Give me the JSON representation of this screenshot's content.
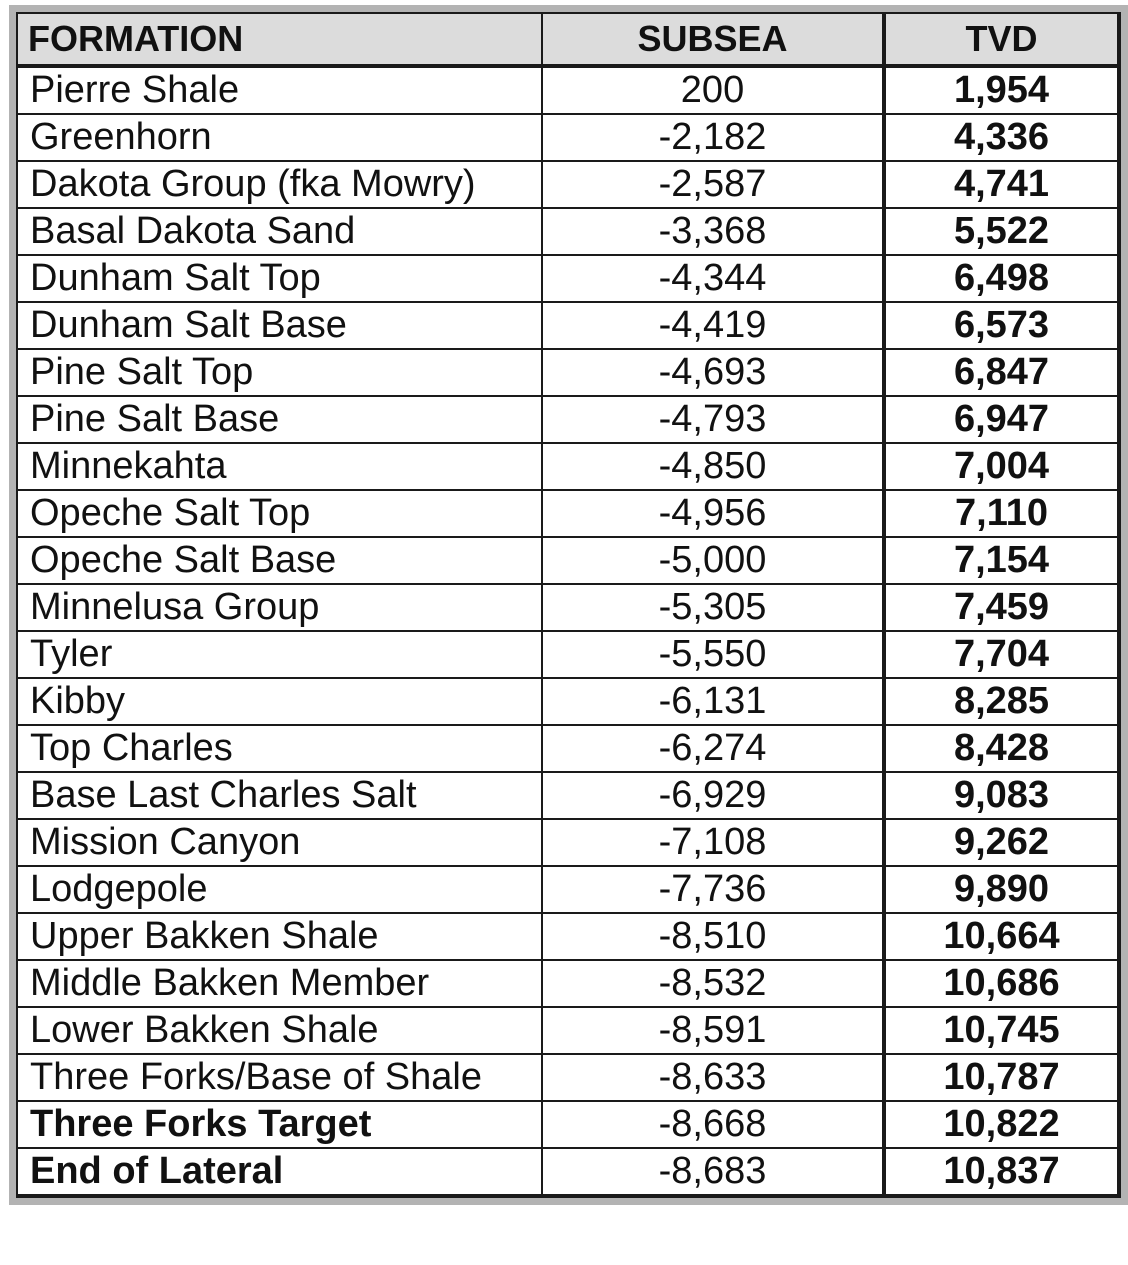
{
  "table": {
    "headers": [
      "FORMATION",
      "SUBSEA",
      "TVD"
    ],
    "rows": [
      {
        "formation": "Pierre Shale",
        "subsea": "200",
        "tvd": "1,954",
        "bold": false
      },
      {
        "formation": "Greenhorn",
        "subsea": "-2,182",
        "tvd": "4,336",
        "bold": false
      },
      {
        "formation": "Dakota Group (fka Mowry)",
        "subsea": "-2,587",
        "tvd": "4,741",
        "bold": false
      },
      {
        "formation": "Basal Dakota Sand",
        "subsea": "-3,368",
        "tvd": "5,522",
        "bold": false
      },
      {
        "formation": "Dunham Salt Top",
        "subsea": "-4,344",
        "tvd": "6,498",
        "bold": false
      },
      {
        "formation": "Dunham Salt Base",
        "subsea": "-4,419",
        "tvd": "6,573",
        "bold": false
      },
      {
        "formation": "Pine Salt Top",
        "subsea": "-4,693",
        "tvd": "6,847",
        "bold": false
      },
      {
        "formation": "Pine Salt Base",
        "subsea": "-4,793",
        "tvd": "6,947",
        "bold": false
      },
      {
        "formation": "Minnekahta",
        "subsea": "-4,850",
        "tvd": "7,004",
        "bold": false
      },
      {
        "formation": "Opeche Salt Top",
        "subsea": "-4,956",
        "tvd": "7,110",
        "bold": false
      },
      {
        "formation": "Opeche Salt Base",
        "subsea": "-5,000",
        "tvd": "7,154",
        "bold": false
      },
      {
        "formation": "Minnelusa Group",
        "subsea": "-5,305",
        "tvd": "7,459",
        "bold": false
      },
      {
        "formation": "Tyler",
        "subsea": "-5,550",
        "tvd": "7,704",
        "bold": false
      },
      {
        "formation": "Kibby",
        "subsea": "-6,131",
        "tvd": "8,285",
        "bold": false
      },
      {
        "formation": "Top Charles",
        "subsea": "-6,274",
        "tvd": "8,428",
        "bold": false
      },
      {
        "formation": "Base Last Charles Salt",
        "subsea": "-6,929",
        "tvd": "9,083",
        "bold": false
      },
      {
        "formation": "Mission Canyon",
        "subsea": "-7,108",
        "tvd": "9,262",
        "bold": false
      },
      {
        "formation": "Lodgepole",
        "subsea": "-7,736",
        "tvd": "9,890",
        "bold": false
      },
      {
        "formation": "Upper Bakken Shale",
        "subsea": "-8,510",
        "tvd": "10,664",
        "bold": false
      },
      {
        "formation": "Middle Bakken Member",
        "subsea": "-8,532",
        "tvd": "10,686",
        "bold": false
      },
      {
        "formation": "Lower Bakken Shale",
        "subsea": "-8,591",
        "tvd": "10,745",
        "bold": false
      },
      {
        "formation": "Three Forks/Base of Shale",
        "subsea": "-8,633",
        "tvd": "10,787",
        "bold": false
      },
      {
        "formation": "Three Forks Target",
        "subsea": "-8,668",
        "tvd": "10,822",
        "bold": true
      },
      {
        "formation": "End of Lateral",
        "subsea": "-8,683",
        "tvd": "10,837",
        "bold": true
      }
    ]
  }
}
